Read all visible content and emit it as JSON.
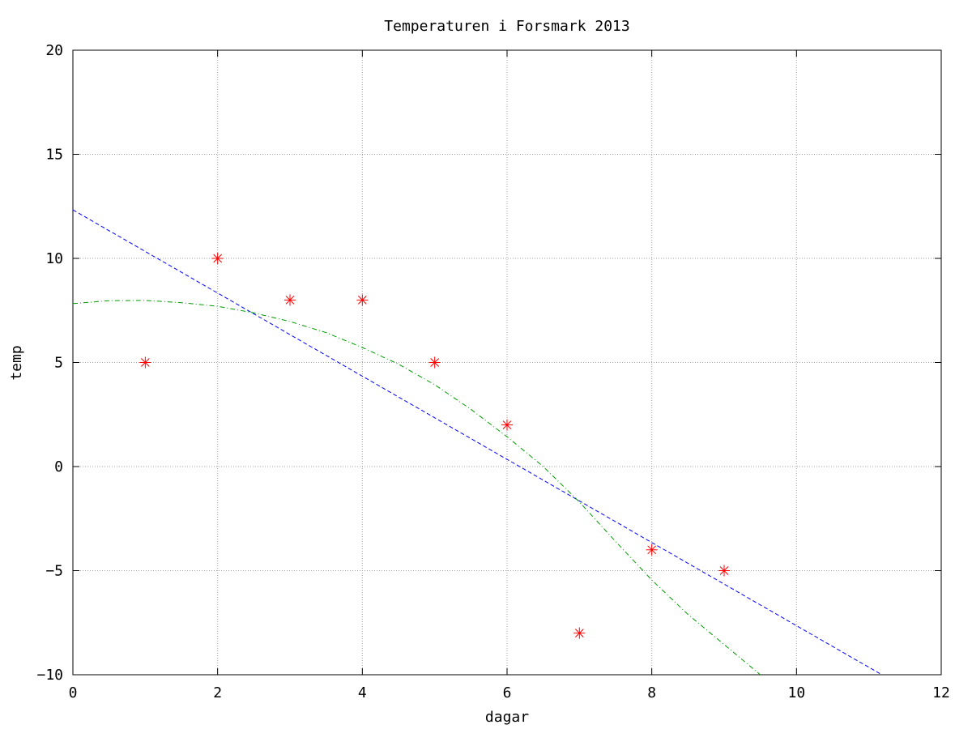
{
  "chart_data": {
    "type": "scatter",
    "title": "Temperaturen i Forsmark 2013",
    "xlabel": "dagar",
    "ylabel": "temp",
    "xlim": [
      0,
      12
    ],
    "ylim": [
      -10,
      20
    ],
    "xticks": [
      0,
      2,
      4,
      6,
      8,
      10,
      12
    ],
    "yticks": [
      -10,
      -5,
      0,
      5,
      10,
      15,
      20
    ],
    "grid": true,
    "points": {
      "marker": "asterisk",
      "color": "#ff0000",
      "x": [
        1,
        2,
        3,
        4,
        5,
        6,
        7,
        8,
        9
      ],
      "y": [
        5,
        10,
        8,
        8,
        5,
        2,
        -8,
        -4,
        -5
      ]
    },
    "lines": [
      {
        "style": "dashed",
        "color": "#0000ff",
        "x": [
          0,
          11.18
        ],
        "y": [
          12.33,
          -10
        ]
      },
      {
        "style": "dash-dot",
        "color": "#009900",
        "x": [
          0,
          0.5,
          1,
          1.5,
          2,
          2.5,
          3,
          3.5,
          4,
          4.5,
          5,
          5.5,
          6,
          6.5,
          7,
          7.5,
          8,
          8.5,
          9,
          9.5
        ],
        "y": [
          7.83,
          7.97,
          7.98,
          7.87,
          7.7,
          7.38,
          6.97,
          6.43,
          5.72,
          4.92,
          3.93,
          2.75,
          1.43,
          0.0,
          -1.7,
          -3.6,
          -5.45,
          -7.1,
          -8.55,
          -10
        ]
      }
    ]
  }
}
